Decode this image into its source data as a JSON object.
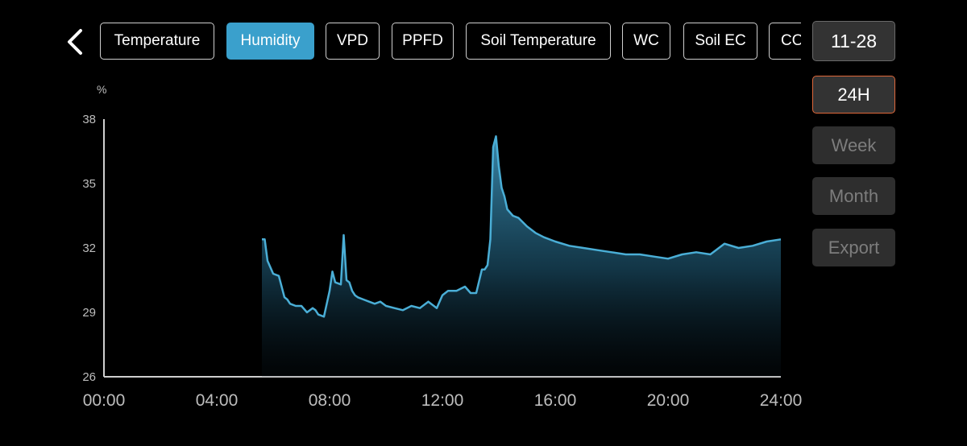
{
  "header": {
    "back_icon": "chevron-left-icon",
    "tabs": [
      {
        "label": "Temperature",
        "active": false
      },
      {
        "label": "Humidity",
        "active": true
      },
      {
        "label": "VPD",
        "active": false
      },
      {
        "label": "PPFD",
        "active": false
      },
      {
        "label": "Soil Temperature",
        "active": false
      },
      {
        "label": "WC",
        "active": false
      },
      {
        "label": "Soil EC",
        "active": false
      },
      {
        "label": "CO",
        "active": false
      }
    ]
  },
  "side": {
    "date": "11-28",
    "ranges": [
      {
        "label": "24H",
        "active": true
      },
      {
        "label": "Week",
        "active": false
      },
      {
        "label": "Month",
        "active": false
      },
      {
        "label": "Export",
        "active": false
      }
    ]
  },
  "colors": {
    "accent": "#3aa0cc",
    "line": "#4aaed6",
    "selected_border": "#e0683a"
  },
  "chart_data": {
    "type": "area",
    "unit_label": "%",
    "ylim": [
      26,
      38
    ],
    "yticks": [
      "38",
      "35",
      "32",
      "29",
      "26"
    ],
    "xlim": [
      0,
      24
    ],
    "xticks": [
      "00:00",
      "04:00",
      "08:00",
      "12:00",
      "16:00",
      "20:00",
      "24:00"
    ],
    "grid": false,
    "series": [
      {
        "x": [
          5.6,
          5.7,
          5.8,
          6.0,
          6.2,
          6.4,
          6.5,
          6.6,
          6.8,
          7.0,
          7.2,
          7.4,
          7.5,
          7.6,
          7.8,
          8.0,
          8.1,
          8.2,
          8.4,
          8.5,
          8.6,
          8.7,
          8.8,
          8.9,
          9.0,
          9.2,
          9.4,
          9.6,
          9.8,
          10.0,
          10.3,
          10.6,
          10.9,
          11.2,
          11.5,
          11.8,
          12.0,
          12.2,
          12.5,
          12.8,
          13.0,
          13.2,
          13.4,
          13.5,
          13.6,
          13.7,
          13.8,
          13.9,
          14.0,
          14.1,
          14.2,
          14.3,
          14.5,
          14.7,
          15.0,
          15.3,
          15.6,
          16.0,
          16.5,
          17.0,
          17.5,
          18.0,
          18.5,
          19.0,
          19.5,
          20.0,
          20.5,
          21.0,
          21.5,
          22.0,
          22.5,
          23.0,
          23.5,
          24.0
        ],
        "y": [
          32.4,
          32.4,
          31.4,
          30.8,
          30.7,
          29.7,
          29.6,
          29.4,
          29.3,
          29.3,
          29.0,
          29.2,
          29.1,
          28.9,
          28.8,
          30.0,
          30.9,
          30.4,
          30.3,
          32.6,
          30.5,
          30.4,
          30.0,
          29.8,
          29.7,
          29.6,
          29.5,
          29.4,
          29.5,
          29.3,
          29.2,
          29.1,
          29.3,
          29.2,
          29.5,
          29.2,
          29.8,
          30.0,
          30.0,
          30.2,
          29.9,
          29.9,
          31.0,
          31.0,
          31.2,
          32.4,
          36.7,
          37.2,
          35.8,
          34.8,
          34.4,
          33.8,
          33.5,
          33.4,
          33.0,
          32.7,
          32.5,
          32.3,
          32.1,
          32.0,
          31.9,
          31.8,
          31.7,
          31.7,
          31.6,
          31.5,
          31.7,
          31.8,
          31.7,
          32.2,
          32.0,
          32.1,
          32.3,
          32.4
        ]
      }
    ]
  }
}
